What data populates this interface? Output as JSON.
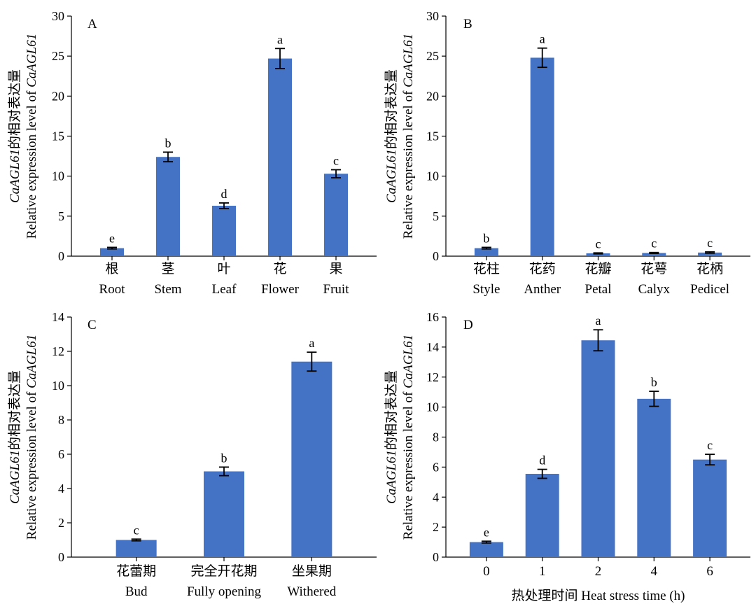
{
  "colors": {
    "bar": "#4472C4",
    "axis": "#000000",
    "error_bar": "#000000"
  },
  "chart_data": [
    {
      "type": "bar",
      "panel": "A",
      "ylabel_italic": "CaAGL61",
      "ylabel_cn": "的相对表达量",
      "ylabel_en": "Relative expression level of ",
      "ylabel_en_italic": "CaAGL61",
      "ylim": [
        0,
        30
      ],
      "yticks": [
        0,
        5,
        10,
        15,
        20,
        25,
        30
      ],
      "categories_cn": [
        "根",
        "茎",
        "叶",
        "花",
        "果"
      ],
      "categories_en": [
        "Root",
        "Stem",
        "Leaf",
        "Flower",
        "Fruit"
      ],
      "values": [
        1.0,
        12.4,
        6.3,
        24.7,
        10.3
      ],
      "errors": [
        0.1,
        0.6,
        0.35,
        1.25,
        0.5
      ],
      "letters": [
        "e",
        "b",
        "d",
        "a",
        "c"
      ],
      "xlabel": ""
    },
    {
      "type": "bar",
      "panel": "B",
      "ylabel_italic": "CaAGL61",
      "ylabel_cn": "的相对表达量",
      "ylabel_en": "Relative expression level of ",
      "ylabel_en_italic": "CaAGL61",
      "ylim": [
        0,
        30
      ],
      "yticks": [
        0,
        5,
        10,
        15,
        20,
        25,
        30
      ],
      "categories_cn": [
        "花柱",
        "花药",
        "花瓣",
        "花萼",
        "花柄"
      ],
      "categories_en": [
        "Style",
        "Anther",
        "Petal",
        "Calyx",
        "Pedicel"
      ],
      "values": [
        1.0,
        24.8,
        0.35,
        0.4,
        0.45
      ],
      "errors": [
        0.1,
        1.2,
        0.06,
        0.06,
        0.08
      ],
      "letters": [
        "b",
        "a",
        "c",
        "c",
        "c"
      ],
      "xlabel": ""
    },
    {
      "type": "bar",
      "panel": "C",
      "ylabel_italic": "CaAGL61",
      "ylabel_cn": "的相对表达量",
      "ylabel_en": "Relative expression level of ",
      "ylabel_en_italic": "CaAGL61",
      "ylim": [
        0,
        14
      ],
      "yticks": [
        0,
        2,
        4,
        6,
        8,
        10,
        12,
        14
      ],
      "categories_cn": [
        "花蕾期",
        "完全开花期",
        "坐果期"
      ],
      "categories_en": [
        "Bud",
        "Fully opening",
        "Withered"
      ],
      "values": [
        1.0,
        5.0,
        11.4
      ],
      "errors": [
        0.05,
        0.25,
        0.55
      ],
      "letters": [
        "c",
        "b",
        "a"
      ],
      "xlabel": ""
    },
    {
      "type": "bar",
      "panel": "D",
      "ylabel_italic": "CaAGL61",
      "ylabel_cn": "的相对表达量",
      "ylabel_en": "Relative expression level of ",
      "ylabel_en_italic": "CaAGL61",
      "ylim": [
        0,
        16
      ],
      "yticks": [
        0,
        2,
        4,
        6,
        8,
        10,
        12,
        14,
        16
      ],
      "categories_cn": [
        "0",
        "1",
        "2",
        "4",
        "6"
      ],
      "categories_en": [],
      "values": [
        1.0,
        5.55,
        14.45,
        10.55,
        6.5
      ],
      "errors": [
        0.06,
        0.3,
        0.7,
        0.5,
        0.35
      ],
      "letters": [
        "e",
        "d",
        "a",
        "b",
        "c"
      ],
      "xlabel": "热处理时间 Heat stress time (h)"
    }
  ]
}
